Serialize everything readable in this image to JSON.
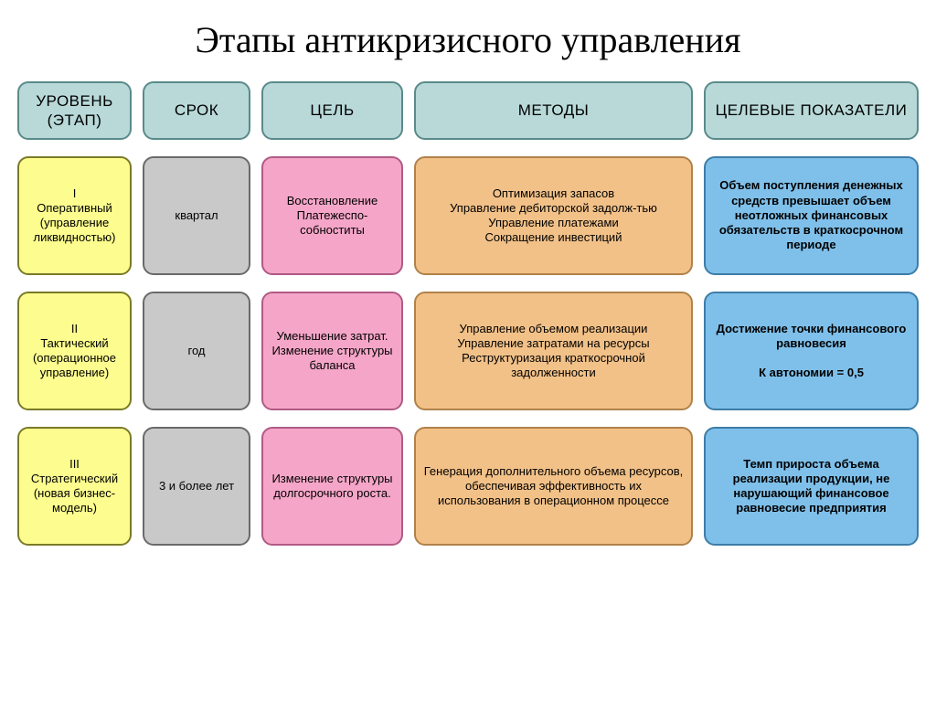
{
  "title": "Этапы антикризисного управления",
  "colors": {
    "header_bg": "#b9d9d9",
    "header_border": "#5a8a8a",
    "level_bg": "#fdfd8f",
    "level_border": "#7a7a28",
    "term_bg": "#c9c9c9",
    "term_border": "#6a6a6a",
    "goal_bg": "#f5a6c8",
    "goal_border": "#b05a85",
    "methods_bg": "#f2c188",
    "methods_border": "#b0824a",
    "kpi_bg": "#7fc0ea",
    "kpi_border": "#3d7da8"
  },
  "header_fontsize": 17,
  "cell_fontsize": 13,
  "kpi_bold": true,
  "headers": {
    "level": "УРОВЕНЬ (ЭТАП)",
    "term": "СРОК",
    "goal": "ЦЕЛЬ",
    "methods": "МЕТОДЫ",
    "kpi": "ЦЕЛЕВЫЕ ПОКАЗАТЕЛИ"
  },
  "rows": [
    {
      "level": "I\nОперативный (управление ликвидностью)",
      "term": "квартал",
      "goal": "Восстановление Платежеспо-собноститы",
      "methods": "Оптимизация запасов\nУправление дебиторской задолж-тью\nУправление платежами\nСокращение инвестиций",
      "kpi": "Объем поступления денежных средств превышает объем неотложных финансовых обязательств в краткосрочном периоде"
    },
    {
      "level": "II\nТактический (операционное управление)",
      "term": "год",
      "goal": "Уменьшение затрат. Изменение структуры баланса",
      "methods": "Управление объемом реализации\nУправление затратами на ресурсы\nРеструктуризация краткосрочной задолженности",
      "kpi": "Достижение точки финансового равновесия\n\nК автономии = 0,5"
    },
    {
      "level": "III\nСтратегический (новая бизнес-модель)",
      "term": "3 и более лет",
      "goal": "Изменение структуры долгосрочного роста.",
      "methods": "Генерация дополнительного объема ресурсов, обеспечивая эффективность их использования в операционном процессе",
      "kpi": "Темп прироста объема реализации продукции, не нарушающий финансовое равновесие предприятия"
    }
  ]
}
